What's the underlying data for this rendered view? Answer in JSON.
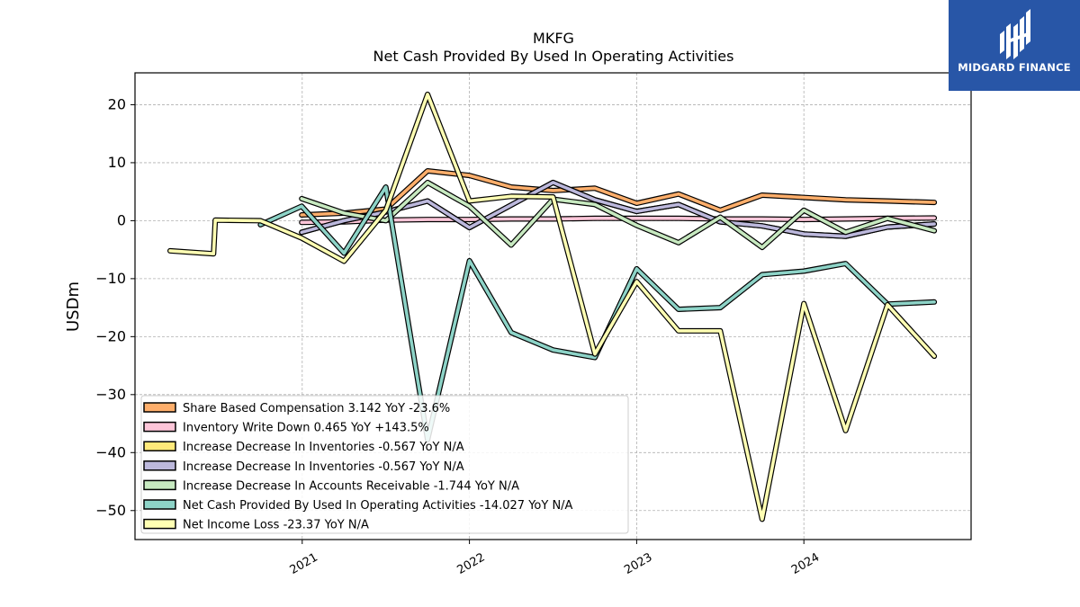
{
  "brand": {
    "name": "MIDGARD FINANCE",
    "color": "#2856a7"
  },
  "chart_data": {
    "type": "line",
    "title": "MKFG",
    "subtitle": "Net Cash Provided By Used In Operating Activities",
    "ylabel": "USDm",
    "xlabel": "",
    "ylim": [
      -55,
      25.5
    ],
    "yticks": [
      20,
      10,
      0,
      -10,
      -20,
      -30,
      -40,
      -50
    ],
    "ytick_labels": [
      "20",
      "10",
      "0",
      "−10",
      "−20",
      "−30",
      "−40",
      "−50"
    ],
    "xlim": [
      2020.0,
      2025.0
    ],
    "xticks": [
      2021,
      2022,
      2023,
      2024
    ],
    "xtick_labels": [
      "2021",
      "2022",
      "2023",
      "2024"
    ],
    "grid": true,
    "legend_position": "lower-left",
    "series": [
      {
        "name": "Share Based Compensation",
        "legend_label": "Share Based Compensation  3.142 YoY -23.6%",
        "color": "#fdae6b",
        "x": [
          2020.997,
          2021.25,
          2021.5,
          2021.75,
          2022.0,
          2022.25,
          2022.5,
          2022.75,
          2023.0,
          2023.25,
          2023.5,
          2023.75,
          2024.0,
          2024.25,
          2024.5,
          2024.78
        ],
        "y": [
          1.0,
          1.3,
          2.0,
          8.6,
          7.8,
          5.8,
          5.2,
          5.6,
          3.0,
          4.6,
          1.8,
          4.4,
          4.0,
          3.6,
          3.4,
          3.142
        ]
      },
      {
        "name": "Inventory Write Down",
        "legend_label": "Inventory Write Down  0.465 YoY +143.5%",
        "color": "#fcc5d8",
        "x": [
          2020.997,
          2021.25,
          2021.5,
          2021.75,
          2022.0,
          2022.25,
          2022.5,
          2022.75,
          2023.0,
          2023.25,
          2023.5,
          2023.75,
          2024.0,
          2024.25,
          2024.5,
          2024.78
        ],
        "y": [
          -0.3,
          -0.2,
          0.1,
          0.2,
          0.2,
          0.3,
          0.3,
          0.4,
          0.4,
          0.4,
          0.3,
          0.3,
          0.2,
          0.3,
          0.4,
          0.465
        ]
      },
      {
        "name": "Increase Decrease In Inventories",
        "legend_label": "Increase Decrease In Inventories  -0.567 YoY N/A",
        "color": "#ffe97a",
        "x": [
          2020.997,
          2021.25,
          2021.5,
          2021.75,
          2022.0,
          2022.25,
          2022.5,
          2022.75,
          2023.0,
          2023.25,
          2023.5,
          2023.75,
          2024.0,
          2024.25,
          2024.5,
          2024.78
        ],
        "y": [
          -2.0,
          0.0,
          1.5,
          3.4,
          -1.2,
          2.7,
          6.6,
          3.6,
          1.6,
          2.8,
          -0.2,
          -0.9,
          -2.3,
          -2.7,
          -1.1,
          -0.567
        ]
      },
      {
        "name": "Increase Decrease In Inventories",
        "legend_label": "Increase Decrease In Inventories  -0.567 YoY N/A",
        "color": "#bcb8dc",
        "x": [
          2020.997,
          2021.25,
          2021.5,
          2021.75,
          2022.0,
          2022.25,
          2022.5,
          2022.75,
          2023.0,
          2023.25,
          2023.5,
          2023.75,
          2024.0,
          2024.25,
          2024.5,
          2024.78
        ],
        "y": [
          -2.0,
          0.0,
          1.5,
          3.4,
          -1.2,
          2.7,
          6.6,
          3.6,
          1.6,
          2.8,
          -0.2,
          -0.9,
          -2.3,
          -2.7,
          -1.1,
          -0.567
        ]
      },
      {
        "name": "Increase Decrease In Accounts Receivable",
        "legend_label": "Increase Decrease In Accounts Receivable  -1.744 YoY N/A",
        "color": "#c7e9c0",
        "x": [
          2020.997,
          2021.25,
          2021.5,
          2021.75,
          2022.0,
          2022.25,
          2022.5,
          2022.75,
          2023.0,
          2023.25,
          2023.5,
          2023.75,
          2024.0,
          2024.25,
          2024.5,
          2024.78
        ],
        "y": [
          3.8,
          1.3,
          0.0,
          6.6,
          2.5,
          -4.2,
          3.7,
          2.8,
          -0.8,
          -3.8,
          0.6,
          -4.6,
          1.8,
          -2.0,
          0.4,
          -1.744
        ]
      },
      {
        "name": "Net Cash Provided By Used In Operating Activities",
        "legend_label": "Net Cash Provided By Used In Operating Activities  -14.027 YoY N/A",
        "color": "#8dd3c7",
        "x": [
          2020.75,
          2020.997,
          2021.25,
          2021.5,
          2021.75,
          2022.0,
          2022.25,
          2022.5,
          2022.75,
          2023.0,
          2023.25,
          2023.5,
          2023.75,
          2024.0,
          2024.25,
          2024.5,
          2024.78
        ],
        "y": [
          -0.7,
          2.5,
          -5.6,
          5.8,
          -37.8,
          -6.9,
          -19.3,
          -22.3,
          -23.6,
          -8.3,
          -15.3,
          -15.0,
          -9.3,
          -8.7,
          -7.4,
          -14.4,
          -14.027
        ]
      },
      {
        "name": "Net Income Loss",
        "legend_label": "Net Income Loss  -23.37 YoY N/A",
        "color": "#ffffb3",
        "x": [
          2020.21,
          2020.47,
          2020.48,
          2020.75,
          2020.997,
          2021.25,
          2021.5,
          2021.75,
          2022.0,
          2022.25,
          2022.5,
          2022.75,
          2023.0,
          2023.25,
          2023.5,
          2023.75,
          2024.0,
          2024.25,
          2024.5,
          2024.78
        ],
        "y": [
          -5.2,
          -5.7,
          0.1,
          0.0,
          -3.0,
          -7.0,
          1.8,
          21.8,
          3.4,
          4.2,
          4.1,
          -23.0,
          -10.5,
          -19.0,
          -19.0,
          -51.5,
          -14.3,
          -36.2,
          -14.5,
          -23.37
        ]
      }
    ]
  }
}
